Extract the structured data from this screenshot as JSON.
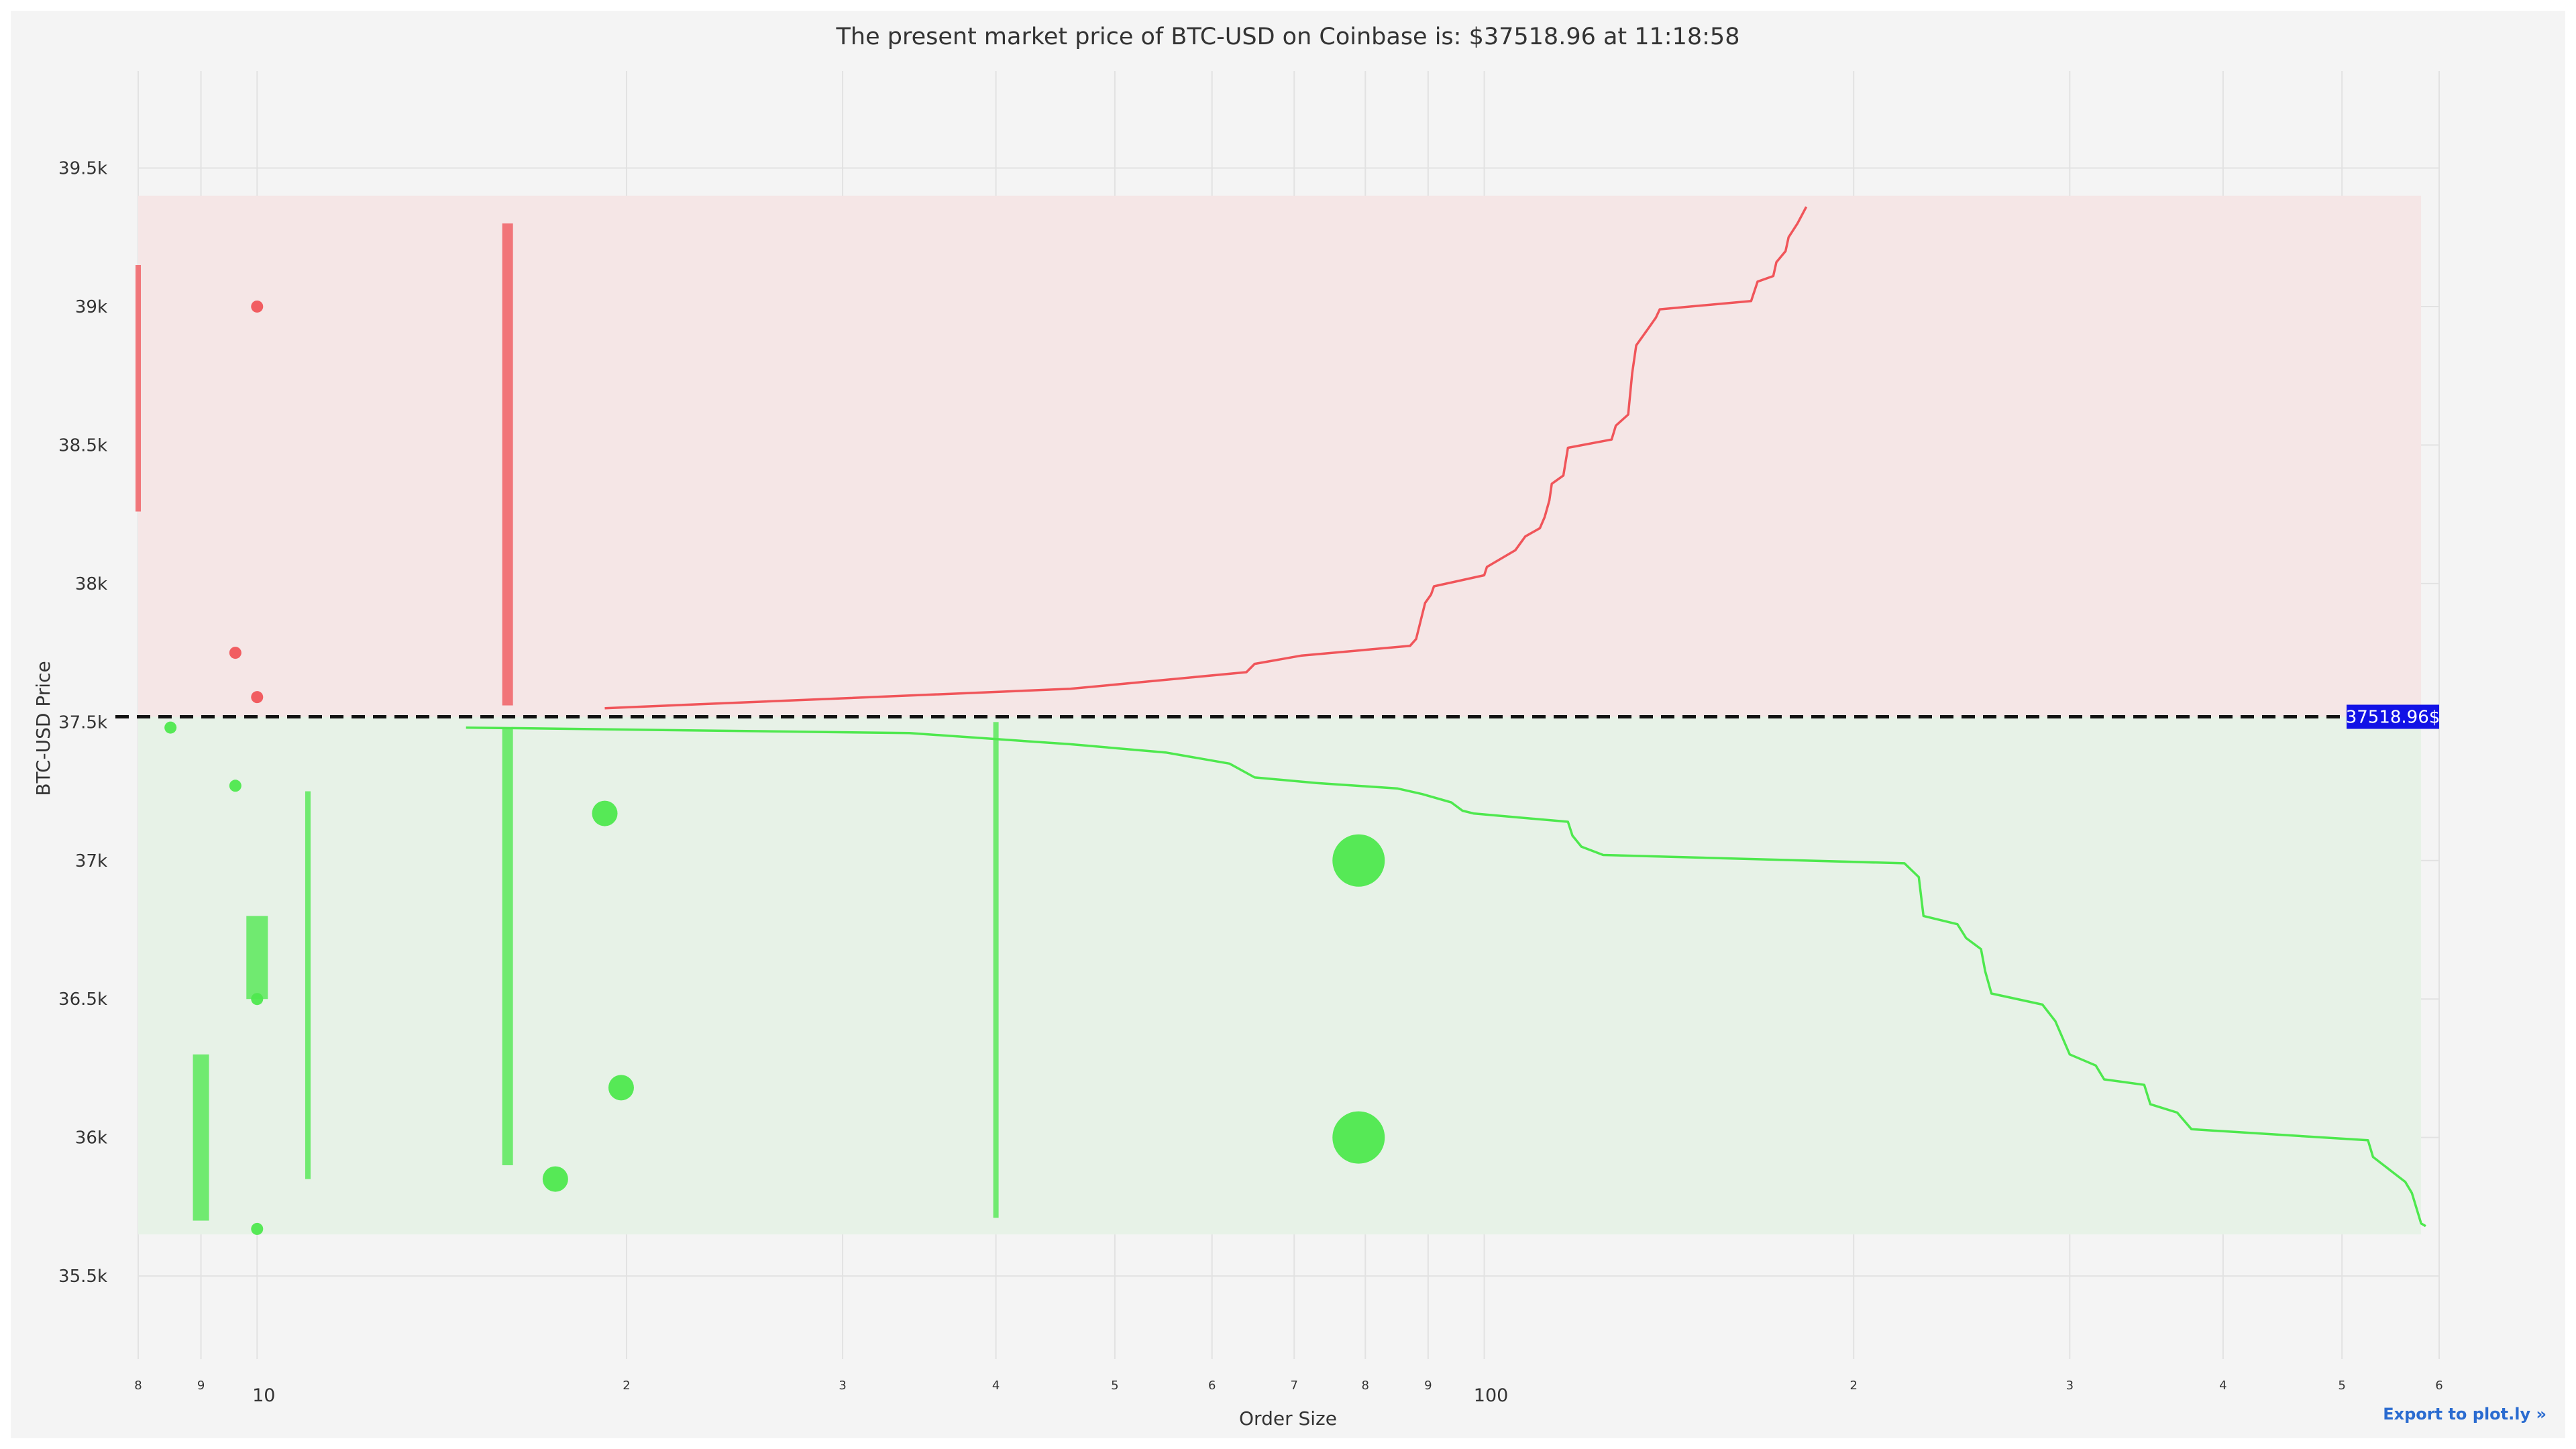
{
  "chart_data": {
    "type": "scatter",
    "title": "The present market price of BTC-USD on Coinbase is: $37518.96 at 11:18:58",
    "xlabel": "Order Size",
    "ylabel": "BTC-USD Price",
    "x_scale": "log",
    "xlim": [
      8,
      600
    ],
    "ylim": [
      35200,
      39850
    ],
    "x_tick_labels": [
      {
        "value": 8,
        "label": "8",
        "major": false
      },
      {
        "value": 9,
        "label": "9",
        "major": false
      },
      {
        "value": 10,
        "label": "10",
        "major": true
      },
      {
        "value": 20,
        "label": "2",
        "major": false
      },
      {
        "value": 30,
        "label": "3",
        "major": false
      },
      {
        "value": 40,
        "label": "4",
        "major": false
      },
      {
        "value": 50,
        "label": "5",
        "major": false
      },
      {
        "value": 60,
        "label": "6",
        "major": false
      },
      {
        "value": 70,
        "label": "7",
        "major": false
      },
      {
        "value": 80,
        "label": "8",
        "major": false
      },
      {
        "value": 90,
        "label": "9",
        "major": false
      },
      {
        "value": 100,
        "label": "100",
        "major": true
      },
      {
        "value": 200,
        "label": "2",
        "major": false
      },
      {
        "value": 300,
        "label": "3",
        "major": false
      },
      {
        "value": 400,
        "label": "4",
        "major": false
      },
      {
        "value": 500,
        "label": "5",
        "major": false
      },
      {
        "value": 600,
        "label": "6",
        "major": false
      }
    ],
    "y_tick_labels": [
      {
        "value": 35500,
        "label": "35.5k"
      },
      {
        "value": 36000,
        "label": "36k"
      },
      {
        "value": 36500,
        "label": "36.5k"
      },
      {
        "value": 37000,
        "label": "37k"
      },
      {
        "value": 37500,
        "label": "37.5k"
      },
      {
        "value": 38000,
        "label": "38k"
      },
      {
        "value": 38500,
        "label": "38.5k"
      },
      {
        "value": 39000,
        "label": "39k"
      },
      {
        "value": 39500,
        "label": "39.5k"
      }
    ],
    "grid": true,
    "current_price": {
      "value": 37518.96,
      "label": "37518.96$",
      "color": "#1212e6"
    },
    "ask_region": {
      "x": [
        8,
        580
      ],
      "y": [
        37518.96,
        39400
      ],
      "color": "#f5e6e6"
    },
    "bid_region": {
      "x": [
        8,
        580
      ],
      "y": [
        35650,
        37518.96
      ],
      "color": "#e7f2e7"
    },
    "ask_color": "#f0555a",
    "bid_color": "#4ee84e",
    "ask_cumulative": [
      [
        19.2,
        37550
      ],
      [
        46,
        37620
      ],
      [
        64,
        37680
      ],
      [
        65,
        37710
      ],
      [
        71,
        37740
      ],
      [
        87,
        37775
      ],
      [
        88,
        37800
      ],
      [
        89.5,
        37930
      ],
      [
        90.5,
        37960
      ],
      [
        91,
        37990
      ],
      [
        100,
        38030
      ],
      [
        100.5,
        38060
      ],
      [
        106,
        38120
      ],
      [
        108,
        38170
      ],
      [
        111,
        38200
      ],
      [
        112,
        38240
      ],
      [
        113,
        38300
      ],
      [
        113.5,
        38360
      ],
      [
        116,
        38390
      ],
      [
        117,
        38490
      ],
      [
        127,
        38520
      ],
      [
        128,
        38570
      ],
      [
        131,
        38610
      ],
      [
        132,
        38760
      ],
      [
        133,
        38860
      ],
      [
        136,
        38920
      ],
      [
        138,
        38960
      ],
      [
        139,
        38990
      ],
      [
        165,
        39020
      ],
      [
        167,
        39090
      ],
      [
        172,
        39110
      ],
      [
        173,
        39160
      ],
      [
        176,
        39200
      ],
      [
        177,
        39250
      ],
      [
        180,
        39300
      ],
      [
        183,
        39360
      ]
    ],
    "bid_cumulative": [
      [
        14.8,
        37480
      ],
      [
        34,
        37460
      ],
      [
        46,
        37420
      ],
      [
        55,
        37390
      ],
      [
        62,
        37350
      ],
      [
        65,
        37300
      ],
      [
        73,
        37280
      ],
      [
        85,
        37260
      ],
      [
        89,
        37240
      ],
      [
        94,
        37210
      ],
      [
        96,
        37180
      ],
      [
        98,
        37170
      ],
      [
        117,
        37140
      ],
      [
        118,
        37090
      ],
      [
        120,
        37050
      ],
      [
        125,
        37020
      ],
      [
        220,
        36990
      ],
      [
        226,
        36940
      ],
      [
        228,
        36800
      ],
      [
        243,
        36770
      ],
      [
        247,
        36720
      ],
      [
        254,
        36680
      ],
      [
        256,
        36600
      ],
      [
        259,
        36520
      ],
      [
        285,
        36480
      ],
      [
        292,
        36420
      ],
      [
        300,
        36300
      ],
      [
        315,
        36260
      ],
      [
        320,
        36210
      ],
      [
        345,
        36190
      ],
      [
        349,
        36120
      ],
      [
        367,
        36090
      ],
      [
        377,
        36030
      ],
      [
        525,
        35990
      ],
      [
        530,
        35930
      ],
      [
        548,
        35880
      ],
      [
        563,
        35840
      ],
      [
        570,
        35800
      ],
      [
        580,
        35690
      ],
      [
        585,
        35680
      ]
    ],
    "ask_orders": [
      {
        "type": "bar",
        "x": 8,
        "y": [
          38260,
          39150
        ],
        "thickness": 1
      },
      {
        "type": "bar",
        "x": 16,
        "y": [
          37560,
          39300
        ],
        "thickness": 3
      },
      {
        "type": "point",
        "x": 10,
        "y": 39000,
        "size": 1
      },
      {
        "type": "point",
        "x": 9.6,
        "y": 37750,
        "size": 1
      },
      {
        "type": "point",
        "x": 10,
        "y": 37590,
        "size": 1
      }
    ],
    "bid_orders": [
      {
        "type": "bar",
        "x": 16,
        "y": [
          35900,
          37480
        ],
        "thickness": 3
      },
      {
        "type": "bar",
        "x": 40,
        "y": [
          35710,
          37500
        ],
        "thickness": 1
      },
      {
        "type": "bar",
        "x": 11,
        "y": [
          35850,
          37250
        ],
        "thickness": 1
      },
      {
        "type": "bar",
        "x": 9,
        "y": [
          35700,
          36300
        ],
        "thickness": 5
      },
      {
        "type": "bar",
        "x": 10,
        "y": [
          36500,
          36800
        ],
        "thickness": 7
      },
      {
        "type": "point",
        "x": 8.5,
        "y": 37480,
        "size": 1
      },
      {
        "type": "point",
        "x": 9.6,
        "y": 37270,
        "size": 1
      },
      {
        "type": "point",
        "x": 19.2,
        "y": 37170,
        "size": 2
      },
      {
        "type": "point",
        "x": 79,
        "y": 37000,
        "size": 4
      },
      {
        "type": "point",
        "x": 10,
        "y": 36500,
        "size": 1
      },
      {
        "type": "point",
        "x": 19.8,
        "y": 36180,
        "size": 2
      },
      {
        "type": "point",
        "x": 79,
        "y": 36000,
        "size": 4
      },
      {
        "type": "point",
        "x": 17.5,
        "y": 35850,
        "size": 2
      },
      {
        "type": "point",
        "x": 10,
        "y": 35670,
        "size": 1
      }
    ]
  },
  "export_link": "Export to plot.ly »",
  "colors": {
    "background": "#f4f4f4",
    "grid": "#e2e2e2",
    "text": "#333333",
    "dashed_line": "#111111"
  }
}
